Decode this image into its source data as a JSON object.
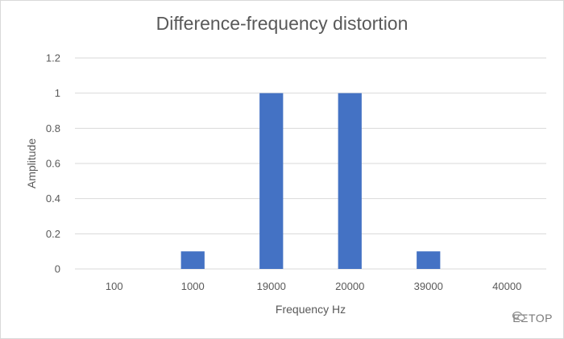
{
  "chart_data": {
    "type": "bar",
    "title": "Difference-frequency distortion",
    "xlabel": "Frequency Hz",
    "ylabel": "Amplitude",
    "categories": [
      "100",
      "1000",
      "19000",
      "20000",
      "39000",
      "40000"
    ],
    "values": [
      0,
      0.1,
      1,
      1,
      0.1,
      0
    ],
    "ylim": [
      0,
      1.2
    ],
    "yticks": [
      "0",
      "0.2",
      "0.4",
      "0.6",
      "0.8",
      "1",
      "1.2"
    ],
    "grid": true,
    "bar_color": "#4472C4",
    "grid_color": "#d9d9d9"
  },
  "watermark": {
    "text": "EETOP",
    "icon": "wechat-icon"
  }
}
